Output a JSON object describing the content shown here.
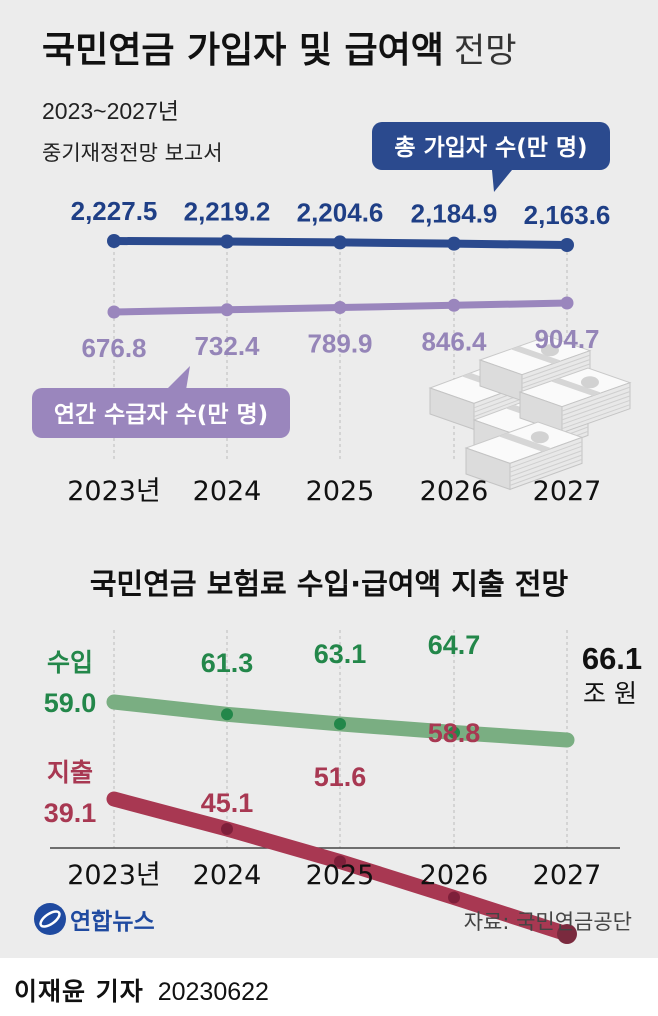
{
  "title_main": "국민연금 가입자 및 급여액",
  "title_suffix": "전망",
  "subtitle_line1": "2023~2027년",
  "subtitle_line2": "중기재정전망 보고서",
  "source": "자료: 국민연금공단",
  "logo_text": "연합뉴스",
  "byline_name": "이재윤 기자",
  "byline_date": "20230622",
  "colors": {
    "background": "#ececec",
    "subscribers": "#2b4a8e",
    "recipients": "#9a86bd",
    "income": "#7aae82",
    "income_dot": "#23874a",
    "income_text": "#23874a",
    "expenditure": "#a83852",
    "expenditure_text": "#a83852",
    "logo": "#1f4aa0"
  },
  "chart_data": [
    {
      "type": "line",
      "categories": [
        "2023년",
        "2024",
        "2025",
        "2026",
        "2027"
      ],
      "series": [
        {
          "name": "총 가입자 수(만 명)",
          "values": [
            2227.5,
            2219.2,
            2204.6,
            2184.9,
            2163.6
          ],
          "labels": [
            "2,227.5",
            "2,219.2",
            "2,204.6",
            "2,184.9",
            "2,163.6"
          ]
        },
        {
          "name": "연간 수급자 수(만 명)",
          "values": [
            676.8,
            732.4,
            789.9,
            846.4,
            904.7
          ],
          "labels": [
            "676.8",
            "732.4",
            "789.9",
            "846.4",
            "904.7"
          ]
        }
      ],
      "illustration": "stacks-of-banknotes"
    },
    {
      "type": "line",
      "title": "국민연금 보험료 수입·급여액 지출 전망",
      "categories": [
        "2023년",
        "2024",
        "2025",
        "2026",
        "2027"
      ],
      "unit": "조 원",
      "series": [
        {
          "name": "수입",
          "values": [
            59.0,
            61.3,
            63.1,
            64.7,
            66.1
          ],
          "labels": [
            "59.0",
            "61.3",
            "63.1",
            "64.7",
            "66.1"
          ]
        },
        {
          "name": "지출",
          "values": [
            39.1,
            45.1,
            51.6,
            58.8,
            66.1
          ],
          "labels": [
            "39.1",
            "45.1",
            "51.6",
            "58.8",
            "66.1"
          ]
        }
      ]
    }
  ]
}
